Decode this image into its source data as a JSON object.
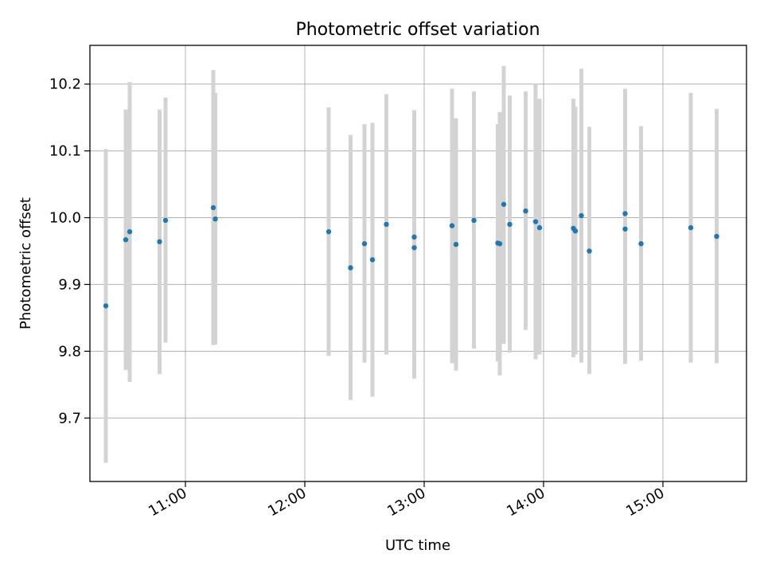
{
  "chart_data": {
    "type": "scatter",
    "title": "Photometric offset variation",
    "xlabel": "UTC time",
    "ylabel": "Photometric offset",
    "x_axis": {
      "scale": "time",
      "xlim": [
        "10:12",
        "15:42"
      ],
      "tick_labels": [
        "11:00",
        "12:00",
        "13:00",
        "14:00",
        "15:00"
      ]
    },
    "y_axis": {
      "ylim": [
        9.605,
        10.258
      ],
      "tick_labels": [
        "9.7",
        "9.8",
        "9.9",
        "10.0",
        "10.1",
        "10.2"
      ]
    },
    "grid": true,
    "colors": {
      "points": "#1f77b4",
      "errorbars": "#d3d3d3",
      "grid": "#b0b0b0"
    },
    "series": [
      {
        "points": [
          {
            "x": "10:20",
            "y": 9.868,
            "lo": 9.633,
            "hi": 10.103
          },
          {
            "x": "10:30",
            "y": 9.967,
            "lo": 9.772,
            "hi": 10.162
          },
          {
            "x": "10:32",
            "y": 9.979,
            "lo": 9.754,
            "hi": 10.203
          },
          {
            "x": "10:47",
            "y": 9.964,
            "lo": 9.766,
            "hi": 10.162
          },
          {
            "x": "10:50",
            "y": 9.996,
            "lo": 9.813,
            "hi": 10.18
          },
          {
            "x": "11:14",
            "y": 10.015,
            "lo": 9.809,
            "hi": 10.221
          },
          {
            "x": "11:15",
            "y": 9.998,
            "lo": 9.81,
            "hi": 10.187
          },
          {
            "x": "12:12",
            "y": 9.979,
            "lo": 9.793,
            "hi": 10.165
          },
          {
            "x": "12:23",
            "y": 9.925,
            "lo": 9.727,
            "hi": 10.124
          },
          {
            "x": "12:30",
            "y": 9.961,
            "lo": 9.783,
            "hi": 10.14
          },
          {
            "x": "12:34",
            "y": 9.937,
            "lo": 9.732,
            "hi": 10.142
          },
          {
            "x": "12:41",
            "y": 9.99,
            "lo": 9.795,
            "hi": 10.185
          },
          {
            "x": "12:55",
            "y": 9.971,
            "lo": 9.781,
            "hi": 10.161
          },
          {
            "x": "12:55",
            "y": 9.955,
            "lo": 9.759,
            "hi": 10.151
          },
          {
            "x": "13:14",
            "y": 9.988,
            "lo": 9.782,
            "hi": 10.193
          },
          {
            "x": "13:16",
            "y": 9.96,
            "lo": 9.771,
            "hi": 10.149
          },
          {
            "x": "13:25",
            "y": 9.996,
            "lo": 9.804,
            "hi": 10.189
          },
          {
            "x": "13:37",
            "y": 9.962,
            "lo": 9.785,
            "hi": 10.14
          },
          {
            "x": "13:38",
            "y": 9.961,
            "lo": 9.764,
            "hi": 10.158
          },
          {
            "x": "13:40",
            "y": 10.02,
            "lo": 9.811,
            "hi": 10.227
          },
          {
            "x": "13:43",
            "y": 9.99,
            "lo": 9.798,
            "hi": 10.183
          },
          {
            "x": "13:51",
            "y": 10.01,
            "lo": 9.832,
            "hi": 10.189
          },
          {
            "x": "13:56",
            "y": 9.994,
            "lo": 9.788,
            "hi": 10.2
          },
          {
            "x": "13:58",
            "y": 9.985,
            "lo": 9.795,
            "hi": 10.178
          },
          {
            "x": "14:15",
            "y": 9.984,
            "lo": 9.791,
            "hi": 10.178
          },
          {
            "x": "14:16",
            "y": 9.98,
            "lo": 9.795,
            "hi": 10.166
          },
          {
            "x": "14:19",
            "y": 10.003,
            "lo": 9.783,
            "hi": 10.223
          },
          {
            "x": "14:23",
            "y": 9.95,
            "lo": 9.766,
            "hi": 10.136
          },
          {
            "x": "14:41",
            "y": 10.006,
            "lo": 9.818,
            "hi": 10.193
          },
          {
            "x": "14:41",
            "y": 9.983,
            "lo": 9.781,
            "hi": 10.185
          },
          {
            "x": "14:49",
            "y": 9.961,
            "lo": 9.786,
            "hi": 10.137
          },
          {
            "x": "15:14",
            "y": 9.985,
            "lo": 9.783,
            "hi": 10.187
          },
          {
            "x": "15:27",
            "y": 9.972,
            "lo": 9.782,
            "hi": 10.163
          }
        ]
      }
    ]
  }
}
